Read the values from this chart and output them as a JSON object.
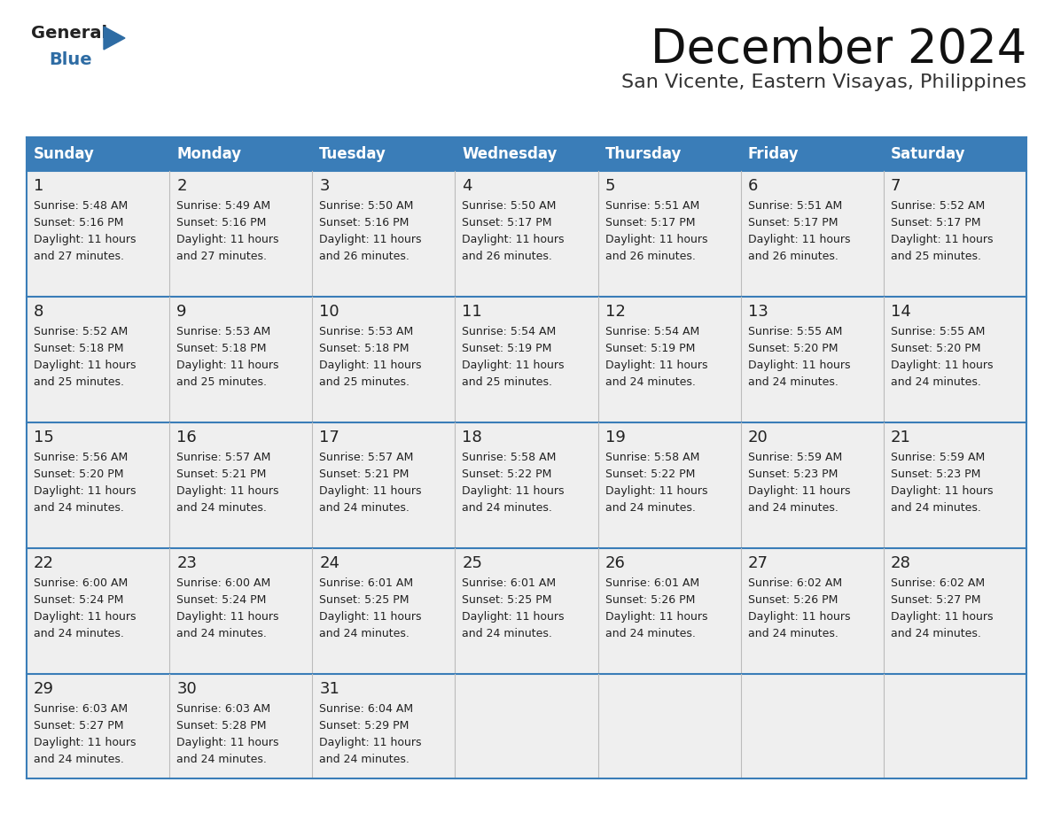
{
  "title": "December 2024",
  "subtitle": "San Vicente, Eastern Visayas, Philippines",
  "header_color": "#3A7DB8",
  "header_text_color": "#FFFFFF",
  "day_names": [
    "Sunday",
    "Monday",
    "Tuesday",
    "Wednesday",
    "Thursday",
    "Friday",
    "Saturday"
  ],
  "bg_color": "#FFFFFF",
  "cell_bg": "#EFEFEF",
  "grid_color": "#3A7DB8",
  "text_color": "#222222",
  "days": [
    {
      "day": 1,
      "col": 0,
      "row": 0,
      "sunrise": "5:48 AM",
      "sunset": "5:16 PM",
      "daylight": "11 hours and 27 minutes."
    },
    {
      "day": 2,
      "col": 1,
      "row": 0,
      "sunrise": "5:49 AM",
      "sunset": "5:16 PM",
      "daylight": "11 hours and 27 minutes."
    },
    {
      "day": 3,
      "col": 2,
      "row": 0,
      "sunrise": "5:50 AM",
      "sunset": "5:16 PM",
      "daylight": "11 hours and 26 minutes."
    },
    {
      "day": 4,
      "col": 3,
      "row": 0,
      "sunrise": "5:50 AM",
      "sunset": "5:17 PM",
      "daylight": "11 hours and 26 minutes."
    },
    {
      "day": 5,
      "col": 4,
      "row": 0,
      "sunrise": "5:51 AM",
      "sunset": "5:17 PM",
      "daylight": "11 hours and 26 minutes."
    },
    {
      "day": 6,
      "col": 5,
      "row": 0,
      "sunrise": "5:51 AM",
      "sunset": "5:17 PM",
      "daylight": "11 hours and 26 minutes."
    },
    {
      "day": 7,
      "col": 6,
      "row": 0,
      "sunrise": "5:52 AM",
      "sunset": "5:17 PM",
      "daylight": "11 hours and 25 minutes."
    },
    {
      "day": 8,
      "col": 0,
      "row": 1,
      "sunrise": "5:52 AM",
      "sunset": "5:18 PM",
      "daylight": "11 hours and 25 minutes."
    },
    {
      "day": 9,
      "col": 1,
      "row": 1,
      "sunrise": "5:53 AM",
      "sunset": "5:18 PM",
      "daylight": "11 hours and 25 minutes."
    },
    {
      "day": 10,
      "col": 2,
      "row": 1,
      "sunrise": "5:53 AM",
      "sunset": "5:18 PM",
      "daylight": "11 hours and 25 minutes."
    },
    {
      "day": 11,
      "col": 3,
      "row": 1,
      "sunrise": "5:54 AM",
      "sunset": "5:19 PM",
      "daylight": "11 hours and 25 minutes."
    },
    {
      "day": 12,
      "col": 4,
      "row": 1,
      "sunrise": "5:54 AM",
      "sunset": "5:19 PM",
      "daylight": "11 hours and 24 minutes."
    },
    {
      "day": 13,
      "col": 5,
      "row": 1,
      "sunrise": "5:55 AM",
      "sunset": "5:20 PM",
      "daylight": "11 hours and 24 minutes."
    },
    {
      "day": 14,
      "col": 6,
      "row": 1,
      "sunrise": "5:55 AM",
      "sunset": "5:20 PM",
      "daylight": "11 hours and 24 minutes."
    },
    {
      "day": 15,
      "col": 0,
      "row": 2,
      "sunrise": "5:56 AM",
      "sunset": "5:20 PM",
      "daylight": "11 hours and 24 minutes."
    },
    {
      "day": 16,
      "col": 1,
      "row": 2,
      "sunrise": "5:57 AM",
      "sunset": "5:21 PM",
      "daylight": "11 hours and 24 minutes."
    },
    {
      "day": 17,
      "col": 2,
      "row": 2,
      "sunrise": "5:57 AM",
      "sunset": "5:21 PM",
      "daylight": "11 hours and 24 minutes."
    },
    {
      "day": 18,
      "col": 3,
      "row": 2,
      "sunrise": "5:58 AM",
      "sunset": "5:22 PM",
      "daylight": "11 hours and 24 minutes."
    },
    {
      "day": 19,
      "col": 4,
      "row": 2,
      "sunrise": "5:58 AM",
      "sunset": "5:22 PM",
      "daylight": "11 hours and 24 minutes."
    },
    {
      "day": 20,
      "col": 5,
      "row": 2,
      "sunrise": "5:59 AM",
      "sunset": "5:23 PM",
      "daylight": "11 hours and 24 minutes."
    },
    {
      "day": 21,
      "col": 6,
      "row": 2,
      "sunrise": "5:59 AM",
      "sunset": "5:23 PM",
      "daylight": "11 hours and 24 minutes."
    },
    {
      "day": 22,
      "col": 0,
      "row": 3,
      "sunrise": "6:00 AM",
      "sunset": "5:24 PM",
      "daylight": "11 hours and 24 minutes."
    },
    {
      "day": 23,
      "col": 1,
      "row": 3,
      "sunrise": "6:00 AM",
      "sunset": "5:24 PM",
      "daylight": "11 hours and 24 minutes."
    },
    {
      "day": 24,
      "col": 2,
      "row": 3,
      "sunrise": "6:01 AM",
      "sunset": "5:25 PM",
      "daylight": "11 hours and 24 minutes."
    },
    {
      "day": 25,
      "col": 3,
      "row": 3,
      "sunrise": "6:01 AM",
      "sunset": "5:25 PM",
      "daylight": "11 hours and 24 minutes."
    },
    {
      "day": 26,
      "col": 4,
      "row": 3,
      "sunrise": "6:01 AM",
      "sunset": "5:26 PM",
      "daylight": "11 hours and 24 minutes."
    },
    {
      "day": 27,
      "col": 5,
      "row": 3,
      "sunrise": "6:02 AM",
      "sunset": "5:26 PM",
      "daylight": "11 hours and 24 minutes."
    },
    {
      "day": 28,
      "col": 6,
      "row": 3,
      "sunrise": "6:02 AM",
      "sunset": "5:27 PM",
      "daylight": "11 hours and 24 minutes."
    },
    {
      "day": 29,
      "col": 0,
      "row": 4,
      "sunrise": "6:03 AM",
      "sunset": "5:27 PM",
      "daylight": "11 hours and 24 minutes."
    },
    {
      "day": 30,
      "col": 1,
      "row": 4,
      "sunrise": "6:03 AM",
      "sunset": "5:28 PM",
      "daylight": "11 hours and 24 minutes."
    },
    {
      "day": 31,
      "col": 2,
      "row": 4,
      "sunrise": "6:04 AM",
      "sunset": "5:29 PM",
      "daylight": "11 hours and 24 minutes."
    }
  ],
  "num_rows": 5,
  "logo_triangle_color": "#2E6CA4"
}
